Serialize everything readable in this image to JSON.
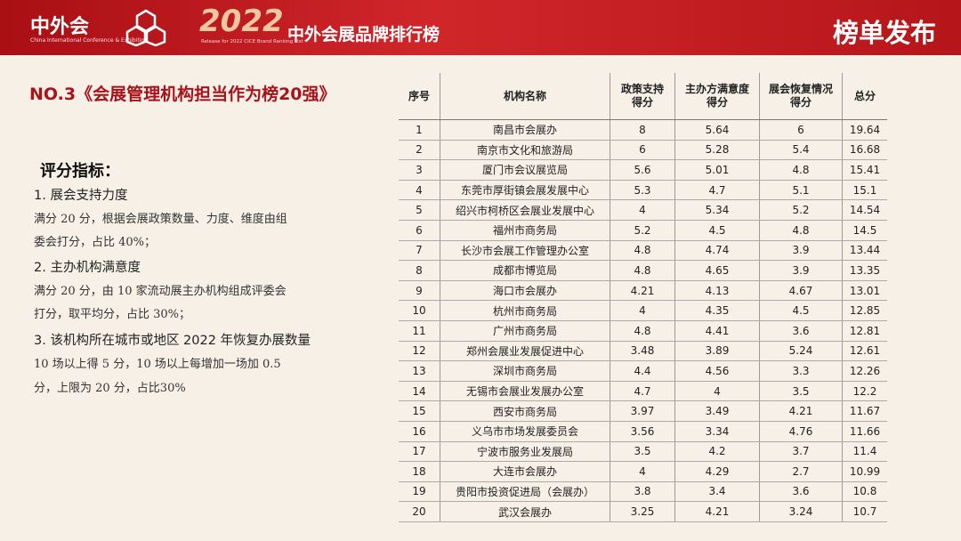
{
  "header": {
    "logo": "中外会",
    "logo_en": "China International Conference & Exhibition",
    "year": "2022",
    "release": "Release for 2022 CICE Brand Ranking List",
    "title": "中外会展品牌排行榜",
    "badge": "榜单发布"
  },
  "section_title": "NO.3《会展管理机构担当作为榜20强》",
  "criteria": {
    "title": "评分指标：",
    "items": [
      {
        "heading": "1.  展会支持力度",
        "lines": [
          "满分 20 分，根据会展政策数量、力度、维度由组",
          "委会打分，占比 40%；"
        ]
      },
      {
        "heading": "2.  主办机构满意度",
        "lines": [
          "满分 20 分，由 10 家流动展主办机构组成评委会",
          "打分，取平均分，占比 30%；"
        ]
      },
      {
        "heading": "3.  该机构所在城市或地区 2022 年恢复办展数量",
        "lines": [
          "10 场以上得 5 分，10 场以上每增加一场加 0.5",
          "分，上限为 20 分，占比30%"
        ]
      }
    ]
  },
  "table": {
    "columns": [
      "序号",
      "机构名称",
      "政策支持\n得分",
      "主办方满意度\n得分",
      "展会恢复情况\n得分",
      "总分"
    ],
    "rows": [
      [
        1,
        "南昌市会展办",
        8,
        5.64,
        6,
        19.64
      ],
      [
        2,
        "南京市文化和旅游局",
        6,
        5.28,
        5.4,
        16.68
      ],
      [
        3,
        "厦门市会议展览局",
        5.6,
        5.01,
        4.8,
        15.41
      ],
      [
        4,
        "东莞市厚街镇会展发展中心",
        5.3,
        4.7,
        5.1,
        15.1
      ],
      [
        5,
        "绍兴市柯桥区会展业发展中心",
        4,
        5.34,
        5.2,
        14.54
      ],
      [
        6,
        "福州市商务局",
        5.2,
        4.5,
        4.8,
        14.5
      ],
      [
        7,
        "长沙市会展工作管理办公室",
        4.8,
        4.74,
        3.9,
        13.44
      ],
      [
        8,
        "成都市博览局",
        4.8,
        4.65,
        3.9,
        13.35
      ],
      [
        9,
        "海口市会展办",
        4.21,
        4.13,
        4.67,
        13.01
      ],
      [
        10,
        "杭州市商务局",
        4,
        4.35,
        4.5,
        12.85
      ],
      [
        11,
        "广州市商务局",
        4.8,
        4.41,
        3.6,
        12.81
      ],
      [
        12,
        "郑州会展业发展促进中心",
        3.48,
        3.89,
        5.24,
        12.61
      ],
      [
        13,
        "深圳市商务局",
        4.4,
        4.56,
        3.3,
        12.26
      ],
      [
        14,
        "无锡市会展业发展办公室",
        4.7,
        4,
        3.5,
        12.2
      ],
      [
        15,
        "西安市商务局",
        3.97,
        3.49,
        4.21,
        11.67
      ],
      [
        16,
        "义乌市市场发展委员会",
        3.56,
        3.34,
        4.76,
        11.66
      ],
      [
        17,
        "宁波市服务业发展局",
        3.5,
        4.2,
        3.7,
        11.4
      ],
      [
        18,
        "大连市会展办",
        4,
        4.29,
        2.7,
        10.99
      ],
      [
        19,
        "贵阳市投资促进局（会展办）",
        3.8,
        3.4,
        3.6,
        10.8
      ],
      [
        20,
        "武汉会展办",
        3.25,
        4.21,
        3.24,
        10.7
      ]
    ]
  }
}
